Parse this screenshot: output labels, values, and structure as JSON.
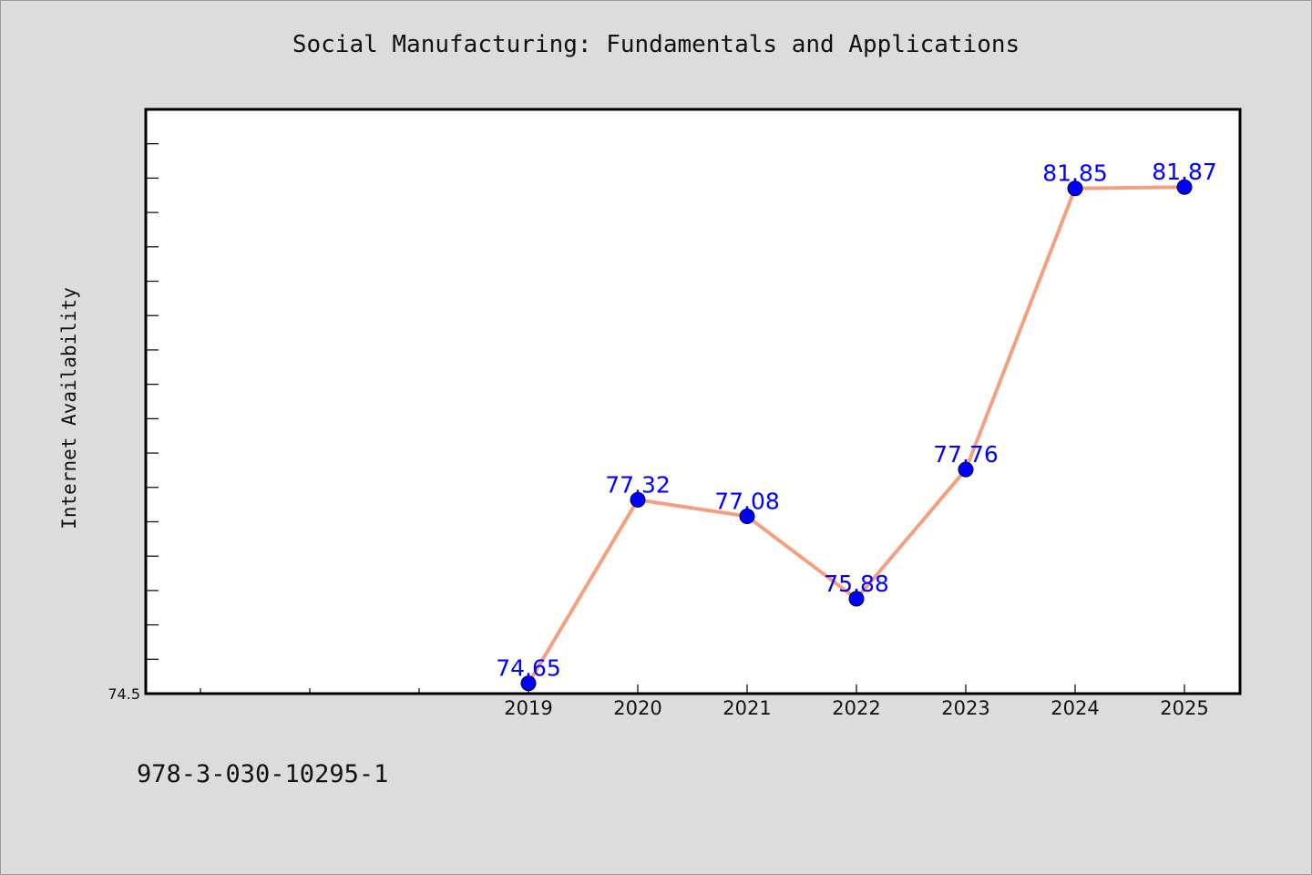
{
  "chart_data": {
    "type": "line",
    "title": "Social Manufacturing: Fundamentals and Applications",
    "xlabel": "",
    "ylabel": "Internet Availability",
    "categories": [
      "2019",
      "2020",
      "2021",
      "2022",
      "2023",
      "2024",
      "2025"
    ],
    "series": [
      {
        "values": [
          74.65,
          77.32,
          77.08,
          75.88,
          77.76,
          81.85,
          81.87
        ],
        "value_labels": [
          "74.65",
          "77.32",
          "77.08",
          "75.88",
          "77.76",
          "81.85",
          "81.87"
        ]
      }
    ],
    "y_tick_labels": [
      "74.5"
    ],
    "ylim": [
      74.5,
      83.0
    ],
    "grid": false,
    "legend": "none",
    "colors": {
      "line": "#f4a07e",
      "marker": "#0000ff",
      "data_label": "#0000ff",
      "plot_background": "#ffffff",
      "figure_background": "#dcdcdc"
    }
  },
  "footer": {
    "isbn": "978-3-030-10295-1"
  }
}
